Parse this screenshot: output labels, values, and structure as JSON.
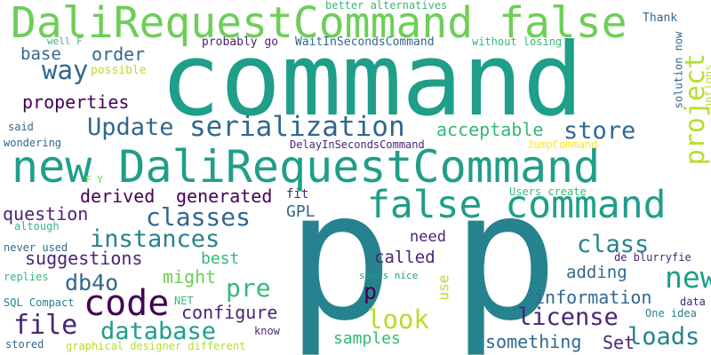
{
  "palette": {
    "background": "#ffffff",
    "dark_purple": "#440154",
    "indigo": "#482677",
    "blue": "#31688e",
    "teal": "#26828e",
    "green": "#1f9e89",
    "light_green": "#35b779",
    "lime": "#6ece58",
    "yellow_green": "#b5de2b",
    "yellow": "#fde725"
  },
  "words": [
    {
      "text": "command"
    },
    {
      "text": "DaliRequestCommand false"
    },
    {
      "text": "new DaliRequestCommand"
    },
    {
      "text": "false command"
    },
    {
      "text": "p"
    },
    {
      "text": "p"
    },
    {
      "text": "code"
    },
    {
      "text": "serialization"
    },
    {
      "text": "Update"
    },
    {
      "text": "store"
    },
    {
      "text": "project"
    },
    {
      "text": "classes"
    },
    {
      "text": "instances"
    },
    {
      "text": "class"
    },
    {
      "text": "new"
    },
    {
      "text": "file"
    },
    {
      "text": "database"
    },
    {
      "text": "license"
    },
    {
      "text": "look"
    },
    {
      "text": "loads"
    },
    {
      "text": "way"
    },
    {
      "text": "db4o"
    },
    {
      "text": "pre"
    },
    {
      "text": "p"
    },
    {
      "text": "base"
    },
    {
      "text": "order"
    },
    {
      "text": "properties"
    },
    {
      "text": "acceptable"
    },
    {
      "text": "derived"
    },
    {
      "text": "generated"
    },
    {
      "text": "question"
    },
    {
      "text": "GPL"
    },
    {
      "text": "suggestions"
    },
    {
      "text": "best"
    },
    {
      "text": "might"
    },
    {
      "text": "called"
    },
    {
      "text": "configure"
    },
    {
      "text": "information"
    },
    {
      "text": "adding"
    },
    {
      "text": "samples"
    },
    {
      "text": "something"
    },
    {
      "text": "Set"
    },
    {
      "text": "need"
    },
    {
      "text": "use"
    },
    {
      "text": "better alternatives"
    },
    {
      "text": "Thank"
    },
    {
      "text": "well F"
    },
    {
      "text": "probably go"
    },
    {
      "text": "WaitInSecondsCommand"
    },
    {
      "text": "without losing"
    },
    {
      "text": "solution now"
    },
    {
      "text": "options"
    },
    {
      "text": "possible"
    },
    {
      "text": "said"
    },
    {
      "text": "wondering"
    },
    {
      "text": "DelayInSecondsCommand"
    },
    {
      "text": "JumpCommand"
    },
    {
      "text": "F Y"
    },
    {
      "text": "fit"
    },
    {
      "text": "Users create"
    },
    {
      "text": "altough"
    },
    {
      "text": "never used"
    },
    {
      "text": "replies"
    },
    {
      "text": "SQL Compact"
    },
    {
      "text": "NET"
    },
    {
      "text": "seems nice"
    },
    {
      "text": "de blurryfie"
    },
    {
      "text": "data"
    },
    {
      "text": "One idea"
    },
    {
      "text": "know"
    },
    {
      "text": "stored"
    },
    {
      "text": "graphical designer different"
    }
  ]
}
